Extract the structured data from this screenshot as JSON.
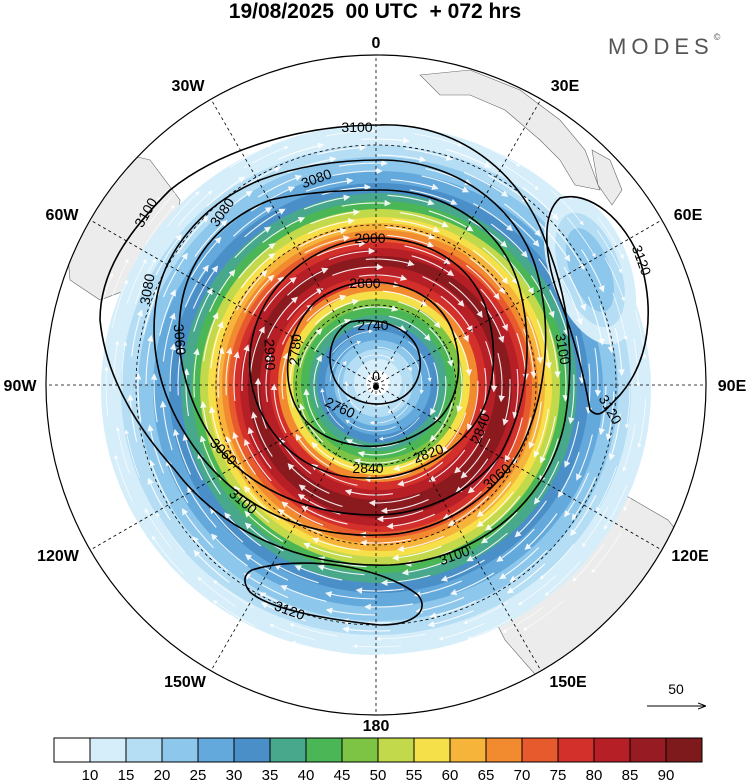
{
  "title": "19/08/2025  00 UTC  + 072 hrs",
  "brand": "MODES",
  "brand_mark": "©",
  "longitude_labels": {
    "top": "0",
    "w30": "30W",
    "e30": "30E",
    "w60": "60W",
    "e60": "60E",
    "w90": "90W",
    "e90": "90E",
    "w120": "120W",
    "e120": "120E",
    "w150": "150W",
    "e150": "150E",
    "bottom": "180"
  },
  "wind_reference": {
    "label": "50",
    "icon": "arrow-right-icon"
  },
  "pole_label": "0",
  "height_contours": [
    {
      "value": 3120,
      "labels": [
        "3120",
        "3120",
        "3120"
      ]
    },
    {
      "value": 3100,
      "labels": [
        "3100",
        "3100",
        "3100",
        "3100",
        "3100"
      ]
    },
    {
      "value": 3080,
      "labels": [
        "3080",
        "3080",
        "3080"
      ]
    },
    {
      "value": 3060,
      "labels": [
        "3060",
        "3060",
        "3060"
      ]
    },
    {
      "value": 2980,
      "labels": [
        "2980"
      ]
    },
    {
      "value": 2900,
      "labels": [
        "2900"
      ]
    },
    {
      "value": 2840,
      "labels": [
        "2840",
        "2840"
      ]
    },
    {
      "value": 2820,
      "labels": [
        "2820"
      ]
    },
    {
      "value": 2800,
      "labels": [
        "2800"
      ]
    },
    {
      "value": 2780,
      "labels": [
        "2780"
      ]
    },
    {
      "value": 2760,
      "labels": [
        "2760"
      ]
    },
    {
      "value": 2740,
      "labels": [
        "2740"
      ]
    }
  ],
  "colorbar": {
    "ticks": [
      "10",
      "15",
      "20",
      "25",
      "30",
      "35",
      "40",
      "45",
      "50",
      "55",
      "60",
      "65",
      "70",
      "75",
      "80",
      "85",
      "90"
    ],
    "colors": [
      "#ffffff",
      "#d6eefa",
      "#b5def5",
      "#8ec7ec",
      "#64a9dc",
      "#4a8fc8",
      "#48a88c",
      "#4bb656",
      "#7dc445",
      "#c3d94c",
      "#f6e04a",
      "#f6b43b",
      "#f28a30",
      "#e75a2d",
      "#d4302b",
      "#b71f27",
      "#971b22",
      "#7e1a1c"
    ]
  },
  "wind_speed_bands": [
    {
      "speed": 90,
      "color": "#8b1a1f"
    },
    {
      "speed": 80,
      "color": "#b71f27"
    },
    {
      "speed": 75,
      "color": "#d4302b"
    },
    {
      "speed": 70,
      "color": "#e75a2d"
    },
    {
      "speed": 65,
      "color": "#f28a30"
    },
    {
      "speed": 60,
      "color": "#f6b43b"
    },
    {
      "speed": 55,
      "color": "#f6e04a"
    },
    {
      "speed": 50,
      "color": "#c3d94c"
    },
    {
      "speed": 45,
      "color": "#4bb656"
    },
    {
      "speed": 40,
      "color": "#48a88c"
    },
    {
      "speed": 35,
      "color": "#4a8fc8"
    },
    {
      "speed": 30,
      "color": "#64a9dc"
    },
    {
      "speed": 25,
      "color": "#8ec7ec"
    },
    {
      "speed": 20,
      "color": "#b5def5"
    },
    {
      "speed": 15,
      "color": "#d6eefa"
    }
  ],
  "colors": {
    "land": "#ececec",
    "coast": "#555555",
    "grid": "#000000",
    "contour": "#000000"
  }
}
